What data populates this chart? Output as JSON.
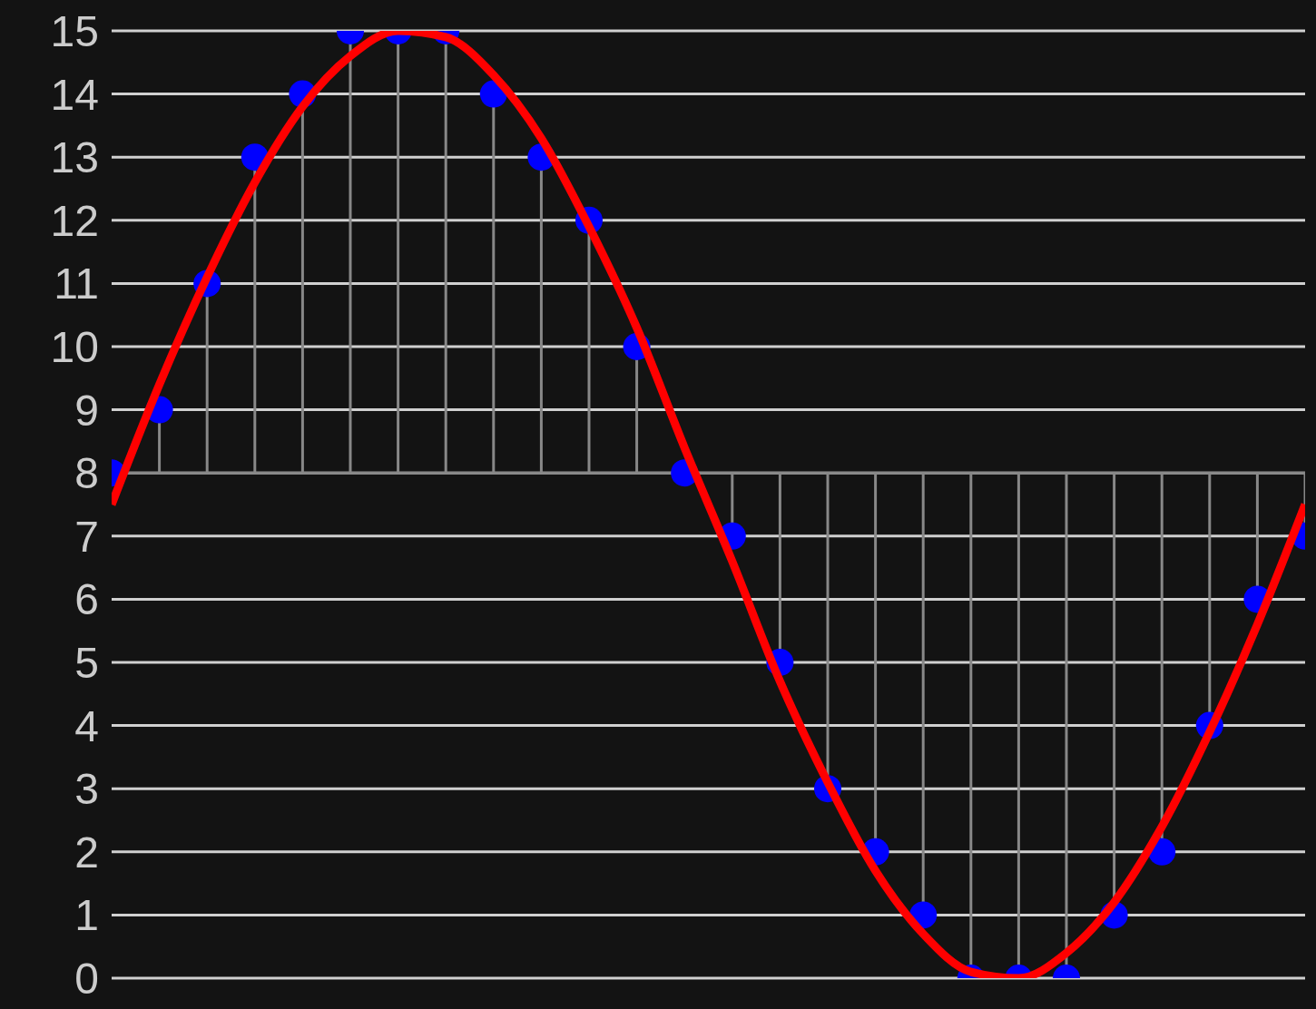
{
  "chart_data": {
    "type": "line",
    "categories": [
      null,
      null,
      null,
      null,
      null,
      null,
      null,
      null,
      null,
      null,
      null,
      null,
      null,
      null,
      null,
      null,
      null,
      null,
      null,
      null,
      null,
      null,
      null,
      null,
      null,
      null
    ],
    "series": [
      {
        "type": "line",
        "color": "#ff0000",
        "values": [
          7.5,
          9.4,
          11.1,
          12.6,
          13.8,
          14.6,
          15,
          14.9,
          14.3,
          13.3,
          11.9,
          10.3,
          8.4,
          6.6,
          4.7,
          3.1,
          1.7,
          0.7,
          0.1,
          0,
          0.4,
          1.2,
          2.4,
          3.9,
          5.6,
          7.5
        ]
      },
      {
        "type": "lollipop",
        "color": "#0000ff",
        "values": [
          8,
          9,
          11,
          13,
          14,
          15,
          15,
          15,
          14,
          13,
          12,
          10,
          8,
          7,
          5,
          3,
          2,
          1,
          0,
          0,
          0,
          1,
          2,
          4,
          6,
          7
        ]
      }
    ],
    "ref_lines": [
      {
        "axis": "y",
        "value": 8,
        "color": "#888888"
      }
    ],
    "ylim": [
      0,
      15
    ],
    "yticks": [
      0,
      1,
      2,
      3,
      4,
      5,
      6,
      7,
      8,
      9,
      10,
      11,
      12,
      13,
      14,
      15
    ],
    "grid": "y",
    "tick_labels": "y",
    "legend": false
  }
}
